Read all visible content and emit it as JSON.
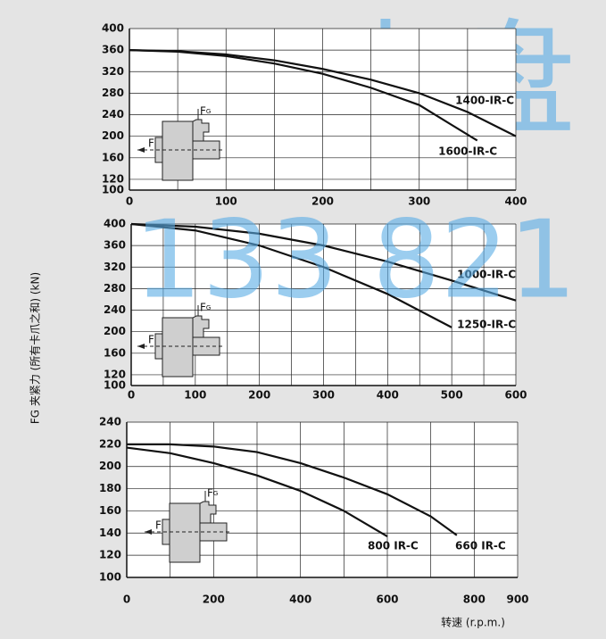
{
  "chart_data": [
    {
      "type": "line",
      "xlim": [
        0,
        400
      ],
      "xticks": [
        0,
        100,
        200,
        300,
        400
      ],
      "xgrid": [
        50,
        150,
        250,
        350
      ],
      "ylim": [
        100,
        400
      ],
      "yticks": [
        100,
        120,
        160,
        200,
        240,
        280,
        320,
        360,
        400
      ],
      "grid": true,
      "series": [
        {
          "name": "1400-IR-C",
          "color": "#111111",
          "x": [
            0,
            50,
            100,
            150,
            200,
            250,
            300,
            350,
            400
          ],
          "values": [
            360,
            358,
            352,
            341,
            325,
            305,
            280,
            245,
            200
          ]
        },
        {
          "name": "1600-IR-C",
          "color": "#111111",
          "x": [
            0,
            50,
            100,
            150,
            200,
            250,
            300,
            360
          ],
          "values": [
            360,
            357,
            349,
            335,
            316,
            290,
            258,
            192
          ]
        }
      ]
    },
    {
      "type": "line",
      "ylabel": "FG 夹紧力 (所有卡爪之和) (kN)",
      "xlim": [
        0,
        600
      ],
      "xticks": [
        0,
        100,
        200,
        300,
        400,
        500,
        600
      ],
      "xgrid": [
        50,
        150,
        250,
        350,
        450,
        550
      ],
      "ylim": [
        100,
        400
      ],
      "yticks": [
        100,
        120,
        160,
        200,
        240,
        280,
        320,
        360,
        400
      ],
      "grid": true,
      "series": [
        {
          "name": "1000-IR-C",
          "color": "#111111",
          "x": [
            0,
            100,
            200,
            300,
            400,
            500,
            600
          ],
          "values": [
            400,
            395,
            382,
            360,
            330,
            295,
            258
          ]
        },
        {
          "name": "1250-IR-C",
          "color": "#111111",
          "x": [
            0,
            100,
            200,
            300,
            400,
            500
          ],
          "values": [
            400,
            388,
            360,
            320,
            270,
            208
          ]
        }
      ]
    },
    {
      "type": "line",
      "xlabel": "转速 (r.p.m.)",
      "xlim": [
        0,
        900
      ],
      "xticks": [
        0,
        200,
        400,
        600,
        800,
        900
      ],
      "xgrid": [
        100,
        300,
        500,
        700
      ],
      "ylim": [
        100,
        240
      ],
      "yticks": [
        100,
        120,
        140,
        160,
        180,
        200,
        220,
        240
      ],
      "grid": true,
      "series": [
        {
          "name": "800 IR-C",
          "color": "#111111",
          "x": [
            0,
            100,
            200,
            300,
            400,
            500,
            600
          ],
          "values": [
            217,
            212,
            203,
            192,
            178,
            160,
            137
          ]
        },
        {
          "name": "660 IR-C",
          "color": "#111111",
          "x": [
            0,
            100,
            200,
            300,
            400,
            500,
            600,
            700,
            760
          ],
          "values": [
            220,
            220,
            218,
            213,
            203,
            190,
            175,
            155,
            138
          ]
        }
      ]
    }
  ],
  "inset": {
    "force": "F",
    "clamp": "F",
    "clamp_sub": "G"
  },
  "watermark": [
    "卡盘",
    "133 821"
  ]
}
